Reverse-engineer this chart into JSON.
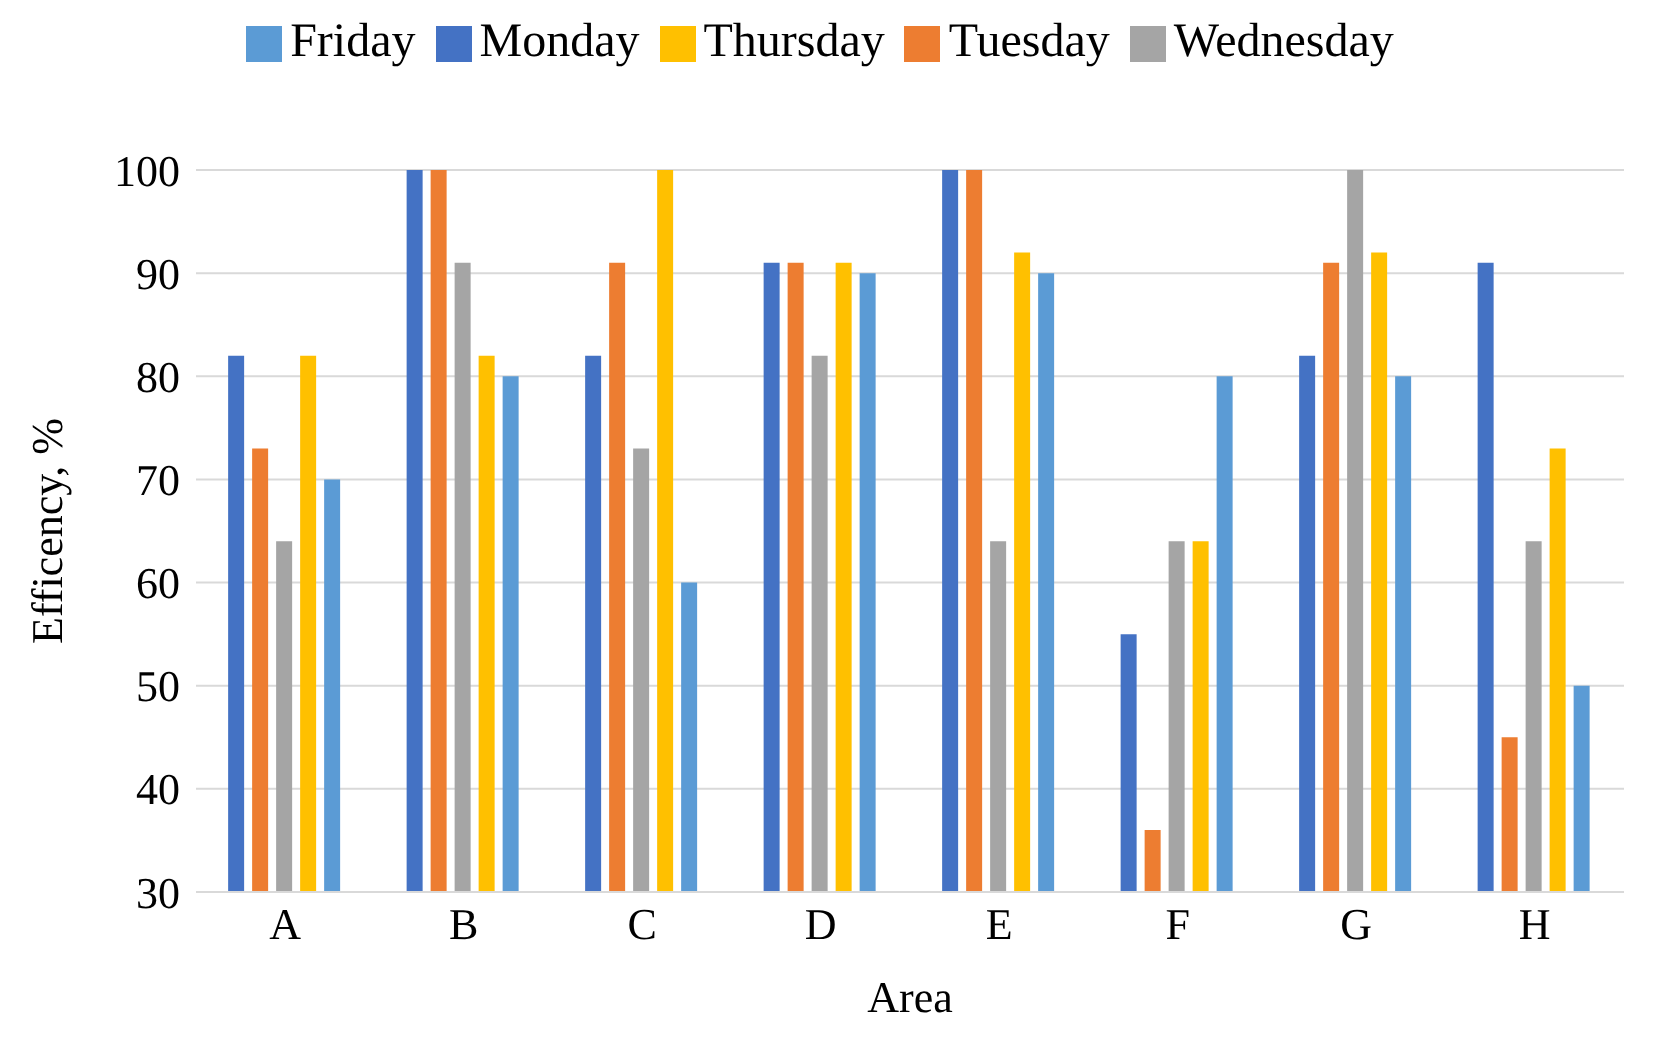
{
  "chart_data": {
    "type": "bar",
    "xlabel": "Area",
    "ylabel": "Efficency, %",
    "categories": [
      "A",
      "B",
      "C",
      "D",
      "E",
      "F",
      "G",
      "H"
    ],
    "series": [
      {
        "name": "Monday",
        "color": "#4472c4",
        "values": [
          82,
          100,
          82,
          91,
          100,
          55,
          82,
          91
        ]
      },
      {
        "name": "Tuesday",
        "color": "#ed7d31",
        "values": [
          73,
          100,
          91,
          91,
          100,
          36,
          91,
          45
        ]
      },
      {
        "name": "Wednesday",
        "color": "#a5a5a5",
        "values": [
          64,
          91,
          73,
          82,
          64,
          64,
          100,
          64
        ]
      },
      {
        "name": "Thursday",
        "color": "#ffc000",
        "values": [
          82,
          82,
          100,
          91,
          92,
          64,
          92,
          73
        ]
      },
      {
        "name": "Friday",
        "color": "#5b9bd5",
        "values": [
          70,
          80,
          60,
          90,
          90,
          80,
          80,
          50
        ]
      }
    ],
    "ylim": [
      30,
      100
    ],
    "yticks": [
      30,
      40,
      50,
      60,
      70,
      80,
      90,
      100
    ],
    "grid": "y",
    "legend": "top"
  }
}
